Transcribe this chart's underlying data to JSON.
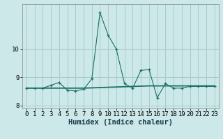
{
  "xlabel": "Humidex (Indice chaleur)",
  "ylabel": "",
  "background_color": "#cce8e8",
  "grid_color": "#aacccc",
  "line_color": "#1a7068",
  "x_data": [
    0,
    1,
    2,
    3,
    4,
    5,
    6,
    7,
    8,
    9,
    10,
    11,
    12,
    13,
    14,
    15,
    16,
    17,
    18,
    19,
    20,
    21,
    22,
    23
  ],
  "y_curve1": [
    8.62,
    8.62,
    8.62,
    8.72,
    8.82,
    8.55,
    8.52,
    8.58,
    8.95,
    11.3,
    10.5,
    10.0,
    8.78,
    8.62,
    9.25,
    9.28,
    8.28,
    8.78,
    8.62,
    8.62,
    8.68,
    8.68,
    8.68,
    8.68
  ],
  "y_curve2": [
    8.62,
    8.62,
    8.62,
    8.62,
    8.62,
    8.62,
    8.62,
    8.62,
    8.63,
    8.64,
    8.65,
    8.66,
    8.67,
    8.68,
    8.69,
    8.7,
    8.7,
    8.7,
    8.7,
    8.7,
    8.7,
    8.7,
    8.7,
    8.7
  ],
  "xlim": [
    -0.5,
    23.5
  ],
  "ylim": [
    7.9,
    11.6
  ],
  "yticks": [
    8,
    9,
    10
  ],
  "xticks": [
    0,
    1,
    2,
    3,
    4,
    5,
    6,
    7,
    8,
    9,
    10,
    11,
    12,
    13,
    14,
    15,
    16,
    17,
    18,
    19,
    20,
    21,
    22,
    23
  ],
  "tick_fontsize": 6.5,
  "xlabel_fontsize": 7.5,
  "spine_color": "#888888"
}
